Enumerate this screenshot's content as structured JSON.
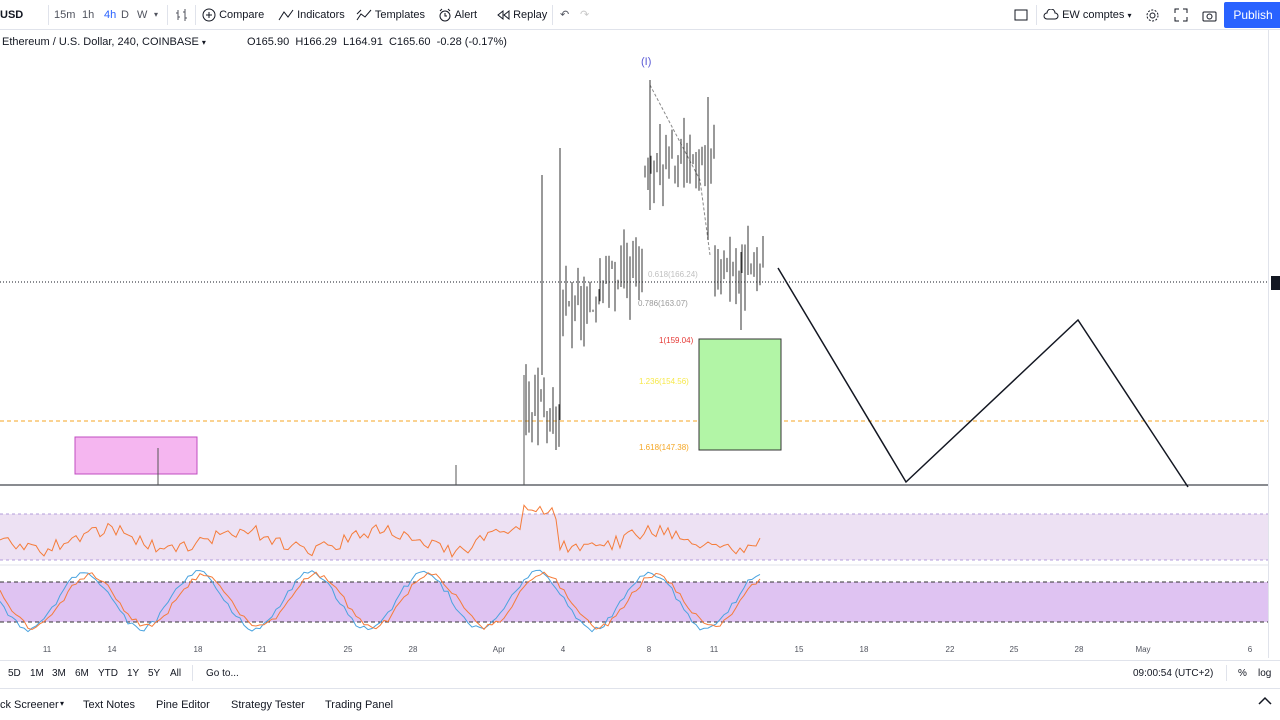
{
  "toolbar": {
    "symbol": "USD",
    "intervals": [
      "15m",
      "1h",
      "4h",
      "D",
      "W"
    ],
    "compare": "Compare",
    "indicators": "Indicators",
    "templates": "Templates",
    "alert": "Alert",
    "replay": "Replay",
    "layout_name": "EW comptes",
    "publish": "Publish"
  },
  "legend": {
    "pair": "Ethereum / U.S. Dollar, 240, COINBASE",
    "open": "O165.90",
    "high": "H166.29",
    "low": "L164.91",
    "close": "C165.60",
    "change": "-0.28 (-0.17%)"
  },
  "wave_label": "(I)",
  "fib_levels": [
    {
      "label": "0.618(166.24)",
      "color": "#c0c0c0"
    },
    {
      "label": "0.786(163.07)",
      "color": "#9a9a9a"
    },
    {
      "label": "1(159.04)",
      "color": "#e53935"
    },
    {
      "label": "1.236(154.56)",
      "color": "#f7e94a"
    },
    {
      "label": "1.618(147.38)",
      "color": "#f5a623"
    }
  ],
  "time_axis": [
    "11",
    "14",
    "18",
    "21",
    "25",
    "28",
    "Apr",
    "4",
    "8",
    "11",
    "15",
    "18",
    "22",
    "25",
    "28",
    "May",
    "6"
  ],
  "range_bar": {
    "ranges": [
      "5D",
      "1M",
      "3M",
      "6M",
      "YTD",
      "1Y",
      "5Y",
      "All"
    ],
    "goto": "Go to...",
    "clock": "09:00:54 (UTC+2)",
    "percent": "%",
    "log": "log"
  },
  "bottom_tabs": [
    "ck Screener",
    "Text Notes",
    "Pine Editor",
    "Strategy Tester",
    "Trading Panel"
  ],
  "colors": {
    "accent": "#2962ff",
    "rsi_band": "#e8d9f0",
    "stoch_band": "#d9b8f0",
    "rsi_line": "#f57c3a",
    "stoch_k": "#4aa3df",
    "stoch_d": "#f57c3a",
    "green_box": "#b2f5a6",
    "pink_box": "#f5b6f0"
  }
}
